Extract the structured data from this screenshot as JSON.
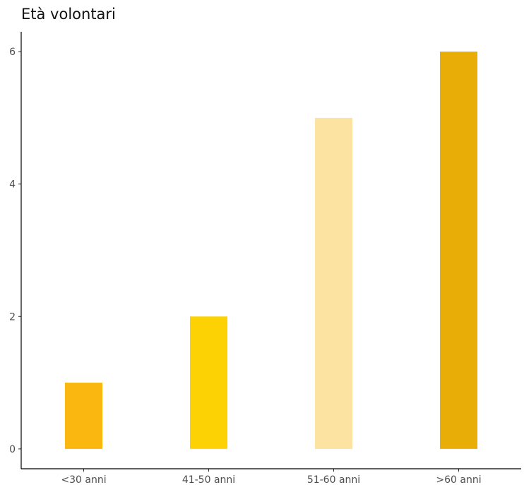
{
  "chart_data": {
    "type": "bar",
    "title": "Età volontari",
    "xlabel": "",
    "ylabel": "",
    "categories": [
      "<30 anni",
      "41-50 anni",
      "51-60 anni",
      ">60 anni"
    ],
    "values": [
      1,
      2,
      5,
      6
    ],
    "colors": [
      "#FAB70F",
      "#FCD205",
      "#FCE3A1",
      "#E9AD07"
    ],
    "ylim": [
      -0.3,
      6.3
    ],
    "yticks": [
      0,
      2,
      4,
      6
    ],
    "grid": false,
    "legend": "none"
  }
}
